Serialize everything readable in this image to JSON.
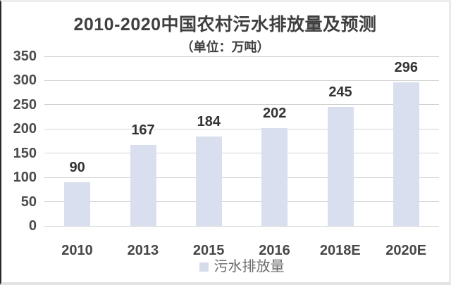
{
  "header": {
    "title": "2010-2020中国农村污水排放量及预测",
    "subtitle": "（单位：万吨）"
  },
  "legend": {
    "label": "污水排放量"
  },
  "colors": {
    "bar_fill": "#d9dfee",
    "legend_swatch": "#d6dce8",
    "gridline": "#d2d2d2",
    "title_text": "#3f3f3f",
    "data_label_text": "#333333",
    "axis_label_text": "#4c4c4c",
    "legend_text": "#6b6b6b"
  },
  "chart_data": {
    "type": "bar",
    "title": "2010-2020中国农村污水排放量及预测",
    "subtitle": "（单位：万吨）",
    "categories": [
      "2010",
      "2013",
      "2015",
      "2016",
      "2018E",
      "2020E"
    ],
    "series": [
      {
        "name": "污水排放量",
        "values": [
          90,
          167,
          184,
          202,
          245,
          296
        ]
      }
    ],
    "data_labels": [
      90,
      167,
      184,
      202,
      245,
      296
    ],
    "ylim": [
      0,
      350
    ],
    "yticks": [
      0,
      50,
      100,
      150,
      200,
      250,
      300,
      350
    ],
    "grid": true,
    "legend_position": "bottom"
  }
}
